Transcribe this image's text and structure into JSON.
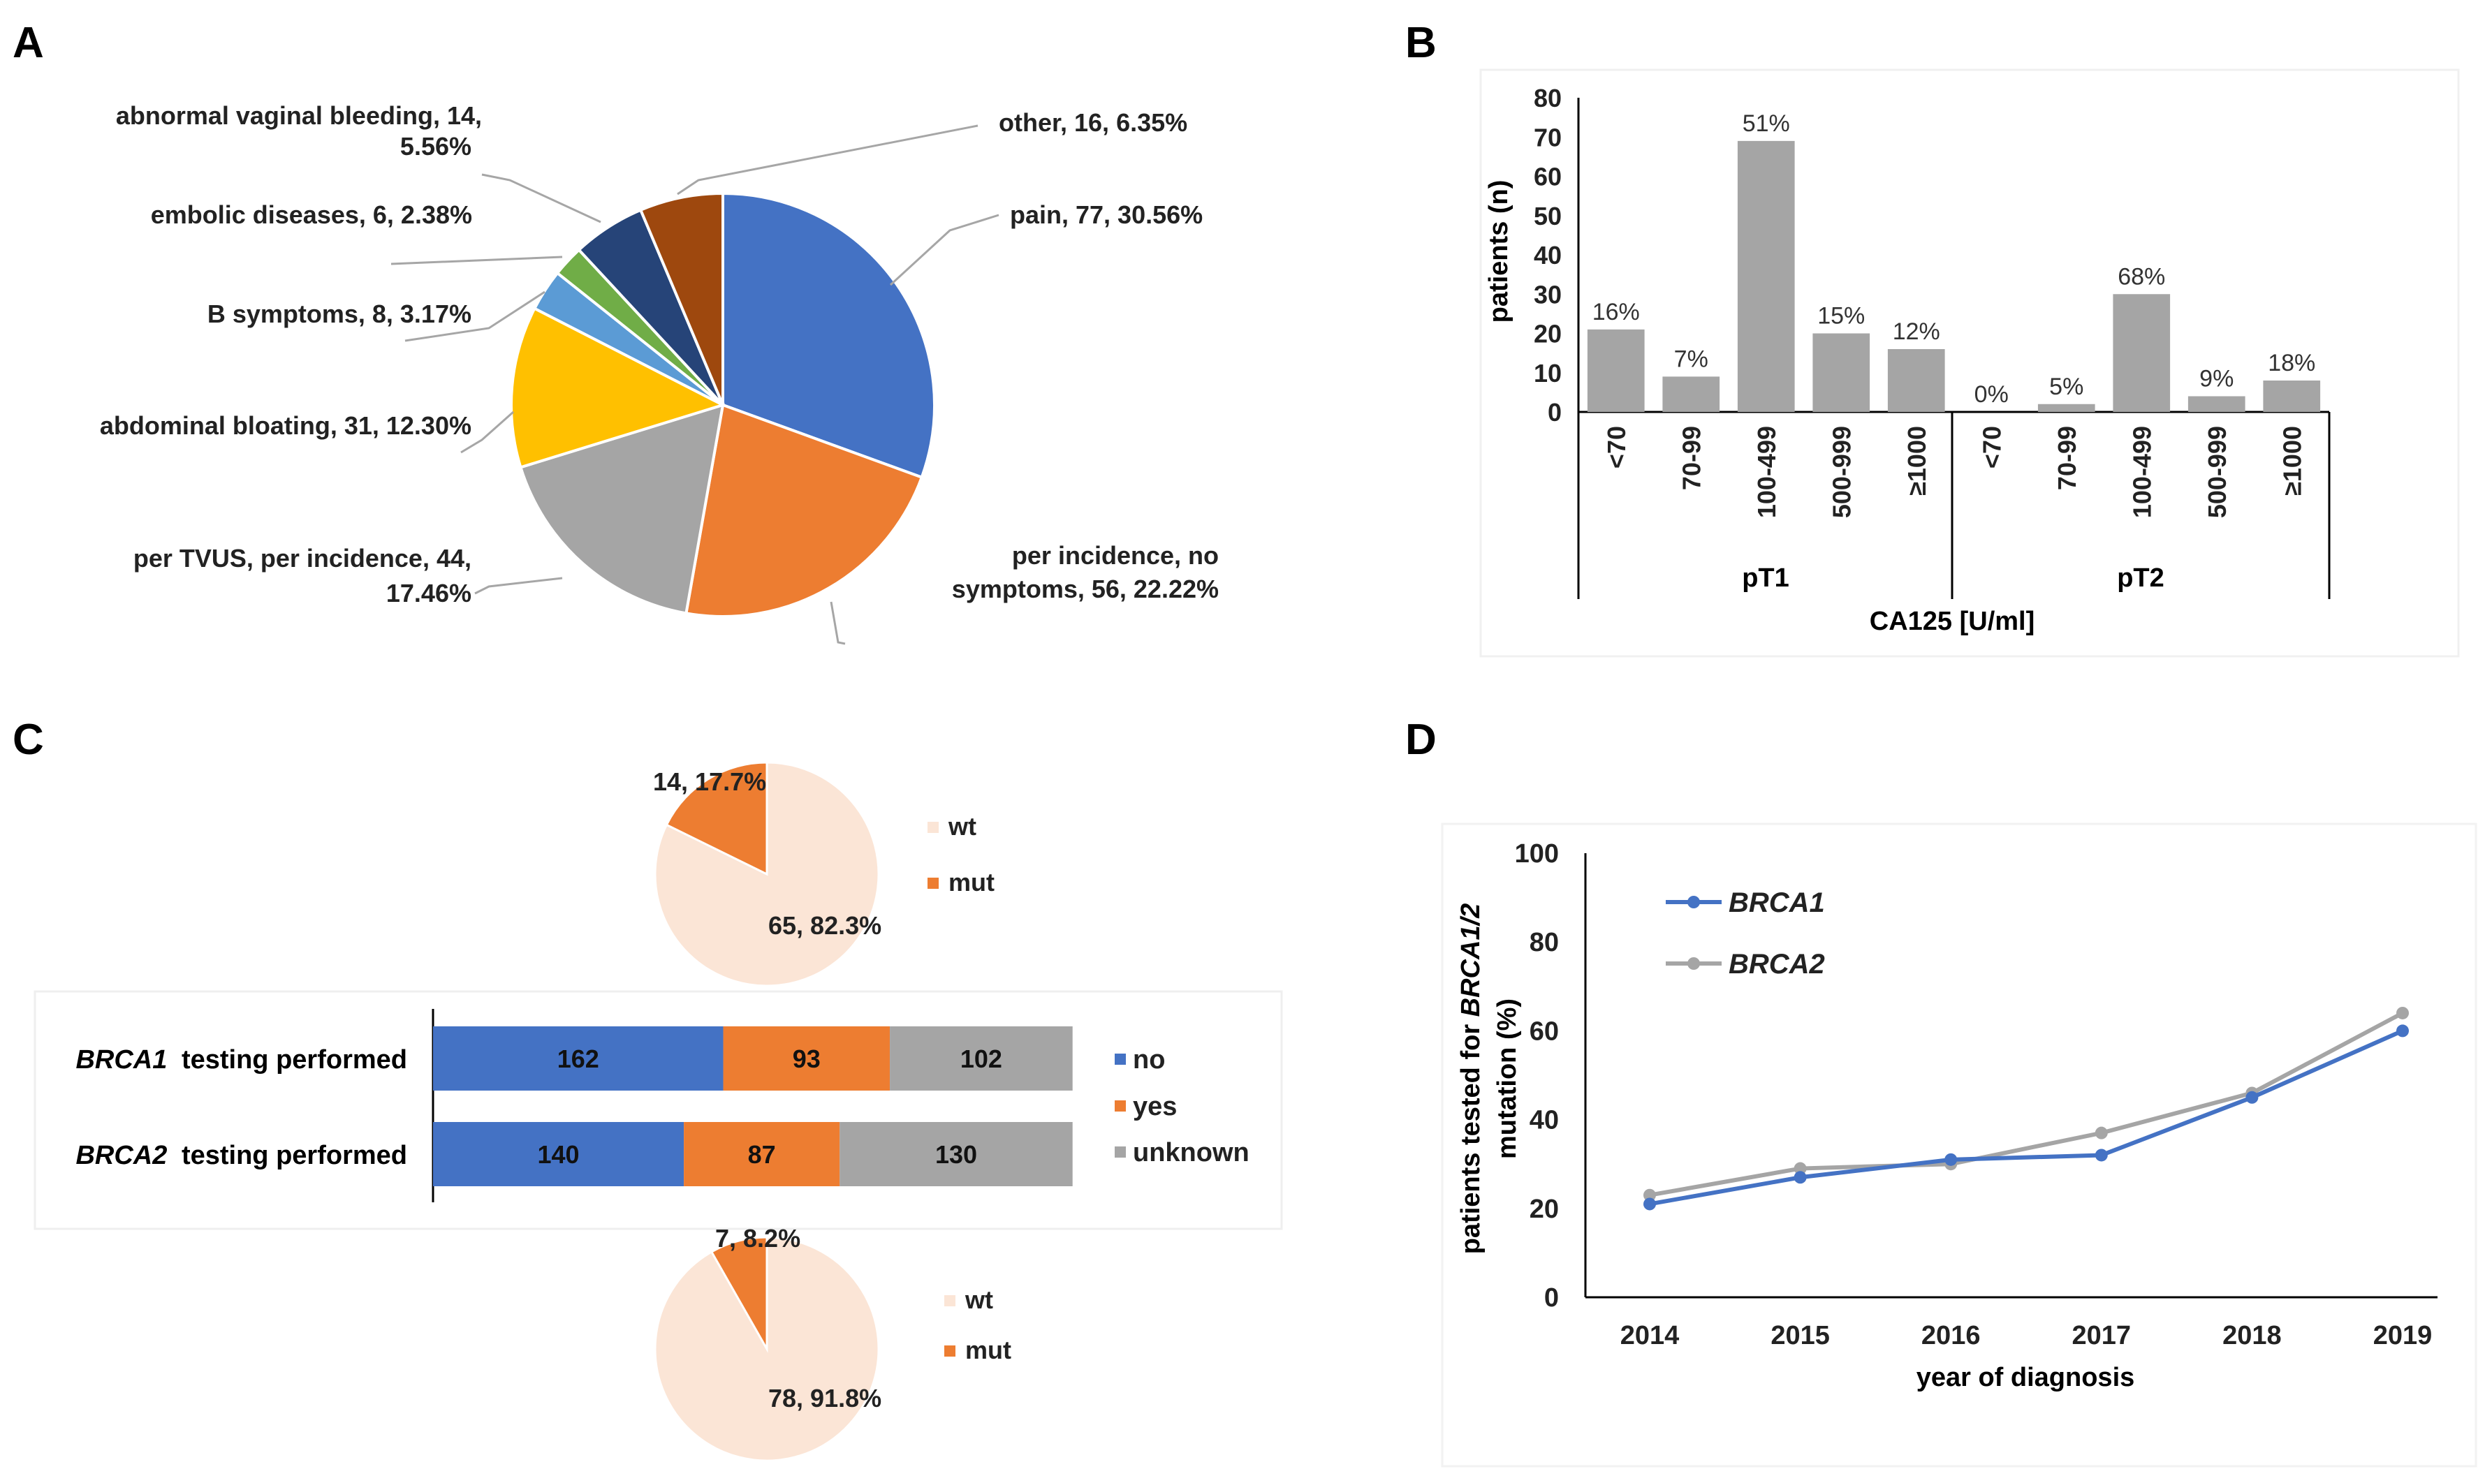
{
  "panels": {
    "a_label": "A",
    "b_label": "B",
    "c_label": "C",
    "d_label": "D"
  },
  "chart_data": [
    {
      "id": "A",
      "type": "pie",
      "title": "",
      "slices": [
        {
          "name": "pain",
          "label": "pain, 77, 30.56%",
          "value": 77,
          "percent": 30.56,
          "color": "#4472C4"
        },
        {
          "name": "per-incidence",
          "label1": "per incidence, no",
          "label2": "symptoms, 56, 22.22%",
          "value": 56,
          "percent": 22.22,
          "color": "#ED7D31"
        },
        {
          "name": "per-tvus",
          "label1": "per TVUS, per incidence, 44,",
          "label2": "17.46%",
          "value": 44,
          "percent": 17.46,
          "color": "#A5A5A5"
        },
        {
          "name": "abdominal-bloating",
          "label": "abdominal bloating, 31, 12.30%",
          "value": 31,
          "percent": 12.3,
          "color": "#FFC000"
        },
        {
          "name": "b-symptoms",
          "label": "B symptoms, 8, 3.17%",
          "value": 8,
          "percent": 3.17,
          "color": "#5B9BD5"
        },
        {
          "name": "embolic-diseases",
          "label": "embolic diseases, 6, 2.38%",
          "value": 6,
          "percent": 2.38,
          "color": "#70AD47"
        },
        {
          "name": "abnormal-vaginal-bleeding",
          "label1": "abnormal vaginal bleeding, 14,",
          "label2": "5.56%",
          "value": 14,
          "percent": 5.56,
          "color": "#264478"
        },
        {
          "name": "other",
          "label": "other, 16, 6.35%",
          "value": 16,
          "percent": 6.35,
          "color": "#9E480E"
        }
      ]
    },
    {
      "id": "B",
      "type": "bar",
      "ylabel": "patients (n)",
      "xlabel": "CA125 [U/ml]",
      "ylim": [
        0,
        80
      ],
      "yticks": [
        "0",
        "10",
        "20",
        "30",
        "40",
        "50",
        "60",
        "70",
        "80"
      ],
      "color": "#A5A5A5",
      "groups": [
        {
          "name": "pT1",
          "categories": [
            "<70",
            "70-99",
            "100-499",
            "500-999",
            "≥1000"
          ],
          "values": [
            21,
            9,
            69,
            20,
            16
          ],
          "labels": [
            "16%",
            "7%",
            "51%",
            "15%",
            "12%"
          ]
        },
        {
          "name": "pT2",
          "categories": [
            "<70",
            "70-99",
            "100-499",
            "500-999",
            "≥1000"
          ],
          "values": [
            0,
            2,
            30,
            4,
            8
          ],
          "labels": [
            "0%",
            "5%",
            "68%",
            "9%",
            "18%"
          ]
        }
      ]
    },
    {
      "id": "C",
      "type": "bar",
      "stacked": true,
      "orientation": "horizontal",
      "categories": [
        "testing performed",
        "testing performed"
      ],
      "genes": [
        "BRCA1",
        "BRCA2"
      ],
      "series": [
        {
          "name": "no",
          "values": [
            162,
            140
          ],
          "color": "#4472C4"
        },
        {
          "name": "yes",
          "values": [
            93,
            87
          ],
          "color": "#ED7D31"
        },
        {
          "name": "unknown",
          "values": [
            102,
            130
          ],
          "color": "#A5A5A5"
        }
      ],
      "pies": [
        {
          "name": "BRCA1",
          "slices": [
            {
              "name": "wt",
              "value": 65,
              "percent": 82.3,
              "label": "65, 82.3%",
              "color": "#FBE5D6"
            },
            {
              "name": "mut",
              "value": 14,
              "percent": 17.7,
              "label": "14, 17.7%",
              "color": "#ED7D31"
            }
          ]
        },
        {
          "name": "BRCA2",
          "slices": [
            {
              "name": "wt",
              "value": 78,
              "percent": 91.8,
              "label": "78, 91.8%",
              "color": "#FBE5D6"
            },
            {
              "name": "mut",
              "value": 7,
              "percent": 8.2,
              "label": "7, 8.2%",
              "color": "#ED7D31"
            }
          ]
        }
      ]
    },
    {
      "id": "D",
      "type": "line",
      "ylabel1": "patients tested for BRCA1/2",
      "ylabel_gene": "BRCA1/2",
      "ylabel_pre": "patients tested for ",
      "ylabel2": "mutation (%)",
      "xlabel": "year of diagnosis",
      "x": [
        "2014",
        "2015",
        "2016",
        "2017",
        "2018",
        "2019"
      ],
      "ylim": [
        0,
        100
      ],
      "yticks": [
        "0",
        "20",
        "40",
        "60",
        "80",
        "100"
      ],
      "series": [
        {
          "name": "BRCA1",
          "values": [
            21,
            27,
            31,
            32,
            45,
            60
          ],
          "color": "#4472C4"
        },
        {
          "name": "BRCA2",
          "values": [
            23,
            29,
            30,
            37,
            46,
            64
          ],
          "color": "#A5A5A5"
        }
      ]
    }
  ]
}
